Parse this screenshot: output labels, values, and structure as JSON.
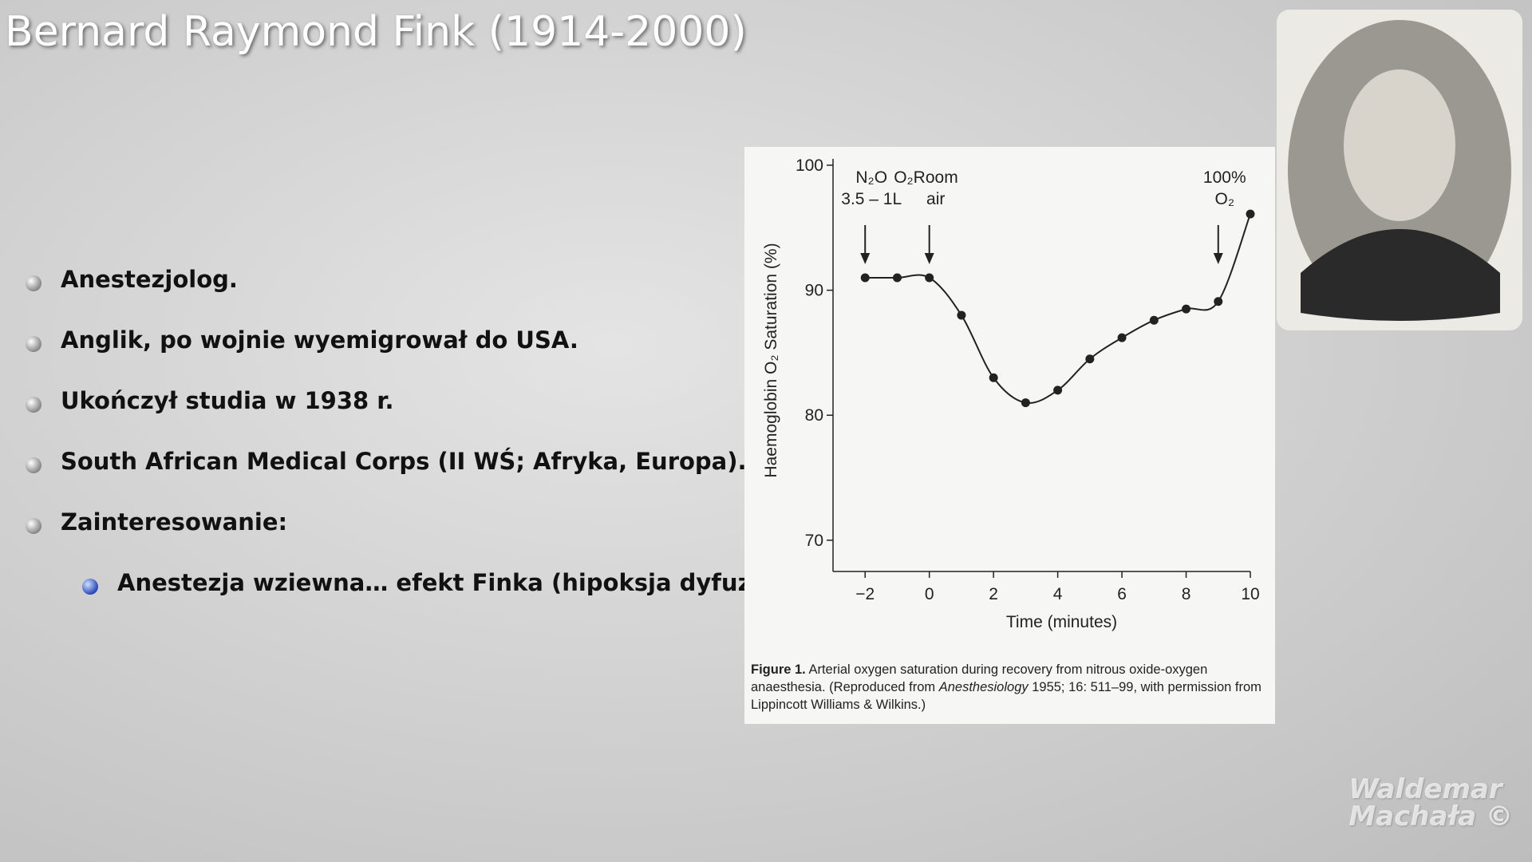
{
  "slide": {
    "title": "Bernard Raymond Fink (1914-2000)",
    "bullets": [
      {
        "text": "Anestezjolog.",
        "level": 1
      },
      {
        "text": "Anglik, po wojnie wyemigrował do USA.",
        "level": 1
      },
      {
        "text": "Ukończył studia w 1938 r.",
        "level": 1
      },
      {
        "text": "South African Medical Corps (II WŚ; Afryka, Europa).",
        "level": 1
      },
      {
        "text": "Zainteresowanie:",
        "level": 1
      },
      {
        "text": "Anestezja wziewna… efekt Finka (hipoksja dyfuzyjna).",
        "level": 2
      }
    ],
    "watermark": [
      "Waldemar",
      "Machała ©"
    ]
  },
  "chart_data": {
    "type": "line",
    "x_label": "Time (minutes)",
    "y_label": "Haemoglobin O₂ Saturation (%)",
    "x": [
      -2,
      -1,
      0,
      1,
      2,
      3,
      4,
      5,
      6,
      7,
      8,
      9,
      10
    ],
    "series": [
      {
        "color": "#222222",
        "values": [
          91,
          91,
          91,
          88,
          83,
          81,
          82,
          84.5,
          86.2,
          87.6,
          88.5,
          89.1,
          96.1
        ]
      }
    ],
    "xlim": [
      -3,
      10
    ],
    "xticks": [
      {
        "value": -2,
        "label": "−2"
      },
      0,
      2,
      4,
      6,
      8,
      10
    ],
    "ylim": [
      67.5,
      100
    ],
    "yticks": [
      70,
      80,
      90,
      100
    ],
    "annotations": [
      {
        "lines": [
          "N₂O",
          "3.5 – 1L"
        ],
        "x": -2
      },
      {
        "lines": [
          "O₂"
        ],
        "x": -1
      },
      {
        "lines": [
          "Room",
          "air"
        ],
        "x": 0
      },
      {
        "lines": [
          "100%",
          "O₂"
        ],
        "x": 9
      }
    ],
    "arrows": [
      -2,
      0,
      9
    ],
    "caption": {
      "label": "Figure 1.",
      "parts": [
        "Arterial oxygen saturation during recovery from nitrous oxide-oxygen anaesthesia. (Reproduced from ",
        "Anesthesiology",
        " 1955; 16: 511–99, with permission from Lippincott Williams & Wilkins.)"
      ]
    }
  }
}
